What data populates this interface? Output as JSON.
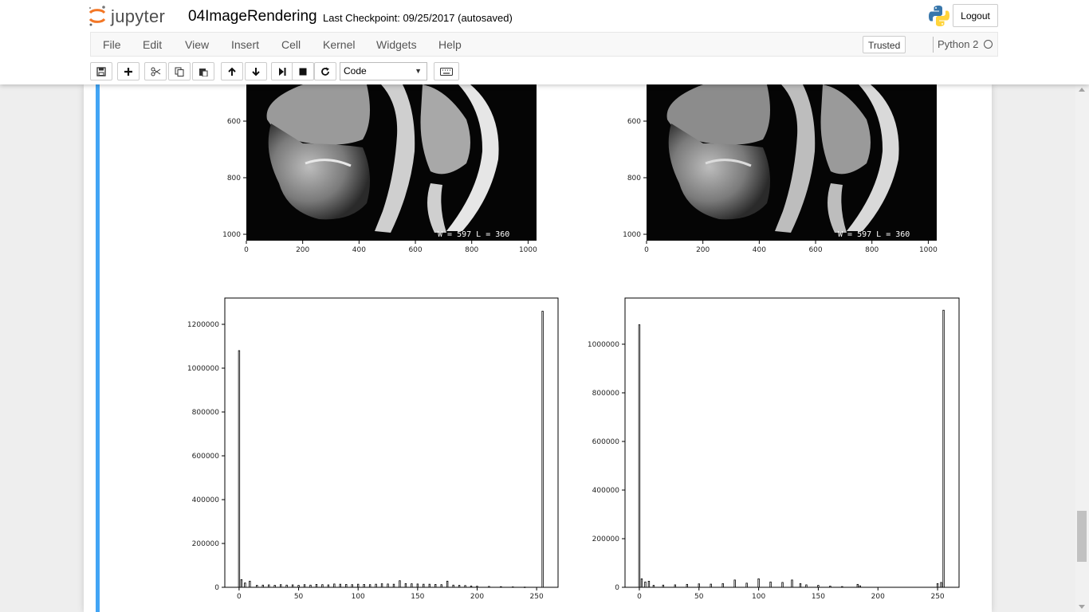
{
  "header": {
    "logo_text": "jupyter",
    "notebook_name": "04ImageRendering",
    "checkpoint": "Last Checkpoint: 09/25/2017 (autosaved)",
    "logout_label": "Logout"
  },
  "menubar": {
    "items": [
      "File",
      "Edit",
      "View",
      "Insert",
      "Cell",
      "Kernel",
      "Widgets",
      "Help"
    ],
    "trusted_label": "Trusted",
    "kernel_name": "Python 2"
  },
  "toolbar": {
    "buttons": [
      "save-icon",
      "plus-icon",
      "cut-icon",
      "copy-icon",
      "paste-icon",
      "arrow-up-icon",
      "arrow-down-icon",
      "step-forward-icon",
      "stop-icon",
      "refresh-icon",
      "keyboard-icon"
    ],
    "cell_type": "Code"
  },
  "output": {
    "image_overlay_text": "W =   597 L =   360",
    "image_axes": {
      "x_ticks": [
        0,
        200,
        400,
        600,
        800,
        1000
      ],
      "y_ticks": [
        600,
        800,
        1000
      ]
    }
  },
  "chart_data": [
    {
      "type": "bar",
      "title": "",
      "xlabel": "",
      "ylabel": "",
      "xlim": [
        -12,
        268
      ],
      "ylim": [
        0,
        1320000
      ],
      "x_ticks": [
        0,
        50,
        100,
        150,
        200,
        250
      ],
      "y_ticks": [
        0,
        200000,
        400000,
        600000,
        800000,
        1000000,
        1200000
      ],
      "x": [
        0,
        2,
        5,
        9,
        15,
        20,
        25,
        30,
        35,
        40,
        45,
        50,
        55,
        60,
        65,
        70,
        75,
        80,
        85,
        90,
        95,
        100,
        105,
        110,
        115,
        120,
        125,
        130,
        135,
        140,
        145,
        150,
        155,
        160,
        165,
        170,
        175,
        180,
        185,
        190,
        195,
        200,
        210,
        220,
        230,
        240,
        255
      ],
      "values": [
        1080000,
        35000,
        20000,
        28000,
        9000,
        10000,
        11000,
        9000,
        12000,
        10000,
        11000,
        9000,
        12000,
        10000,
        13000,
        12000,
        11000,
        15000,
        14000,
        13000,
        12000,
        14000,
        13000,
        12000,
        14000,
        16000,
        15000,
        14000,
        30000,
        17000,
        16000,
        15000,
        14000,
        14000,
        13000,
        12000,
        28000,
        10000,
        9000,
        8000,
        6000,
        5000,
        4000,
        3000,
        2000,
        1000,
        1260000
      ]
    },
    {
      "type": "bar",
      "title": "",
      "xlabel": "",
      "ylabel": "",
      "xlim": [
        -12,
        268
      ],
      "ylim": [
        0,
        1190000
      ],
      "x_ticks": [
        0,
        50,
        100,
        150,
        200,
        250
      ],
      "y_ticks": [
        0,
        200000,
        400000,
        600000,
        800000,
        1000000
      ],
      "x": [
        0,
        2,
        5,
        8,
        12,
        20,
        30,
        40,
        50,
        60,
        70,
        80,
        90,
        100,
        110,
        120,
        128,
        135,
        140,
        150,
        160,
        170,
        183,
        185,
        250,
        253,
        255
      ],
      "values": [
        1080000,
        35000,
        22000,
        25000,
        8000,
        9000,
        10000,
        12000,
        14000,
        13000,
        15000,
        30000,
        17000,
        35000,
        22000,
        20000,
        30000,
        15000,
        10000,
        8000,
        5000,
        3000,
        12000,
        6000,
        15000,
        20000,
        1140000
      ]
    }
  ]
}
